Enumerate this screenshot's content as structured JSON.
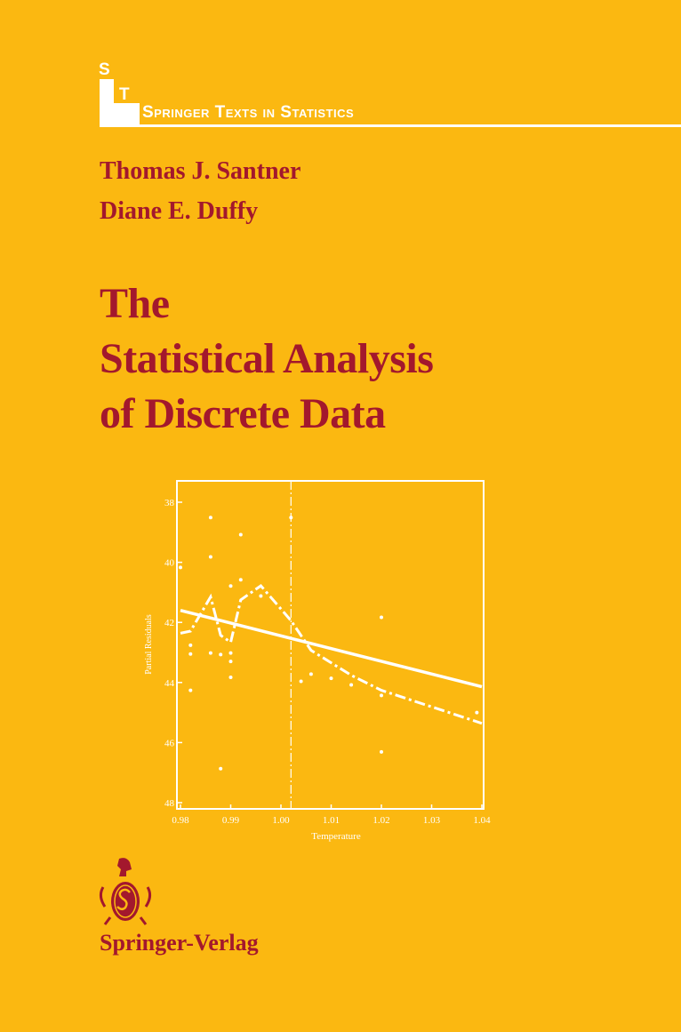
{
  "series": {
    "letter1": "S",
    "letter2": "T",
    "name": "Springer Texts in Statistics"
  },
  "authors": [
    "Thomas J. Santner",
    "Diane E. Duffy"
  ],
  "title_lines": [
    "The",
    "Statistical Analysis",
    "of Discrete Data"
  ],
  "publisher": "Springer-Verlag",
  "colors": {
    "background": "#FBB811",
    "title": "#A3182D",
    "plot": "#FFFFFF"
  },
  "chart_data": {
    "type": "scatter",
    "xlabel": "Temperature",
    "ylabel": "Partial Residuals",
    "xlim": [
      0.98,
      1.04
    ],
    "ylim": [
      48,
      38
    ],
    "y_axis_inverted": true,
    "xticks": [
      "0.98",
      "0.99",
      "1.00",
      "1.01",
      "1.02",
      "1.03",
      "1.04"
    ],
    "yticks": [
      "38",
      "40",
      "42",
      "44",
      "46",
      "48"
    ],
    "grid": false,
    "points": [
      [
        0.98,
        40.17
      ],
      [
        0.986,
        38.51
      ],
      [
        0.986,
        39.82
      ],
      [
        0.992,
        39.08
      ],
      [
        0.992,
        40.58
      ],
      [
        0.99,
        40.79
      ],
      [
        0.996,
        41.12
      ],
      [
        1.002,
        38.51
      ],
      [
        1.02,
        41.83
      ],
      [
        0.982,
        42.76
      ],
      [
        0.982,
        43.05
      ],
      [
        0.982,
        44.26
      ],
      [
        0.986,
        43.02
      ],
      [
        0.988,
        43.07
      ],
      [
        0.99,
        43.02
      ],
      [
        0.99,
        43.3
      ],
      [
        0.99,
        43.83
      ],
      [
        0.988,
        46.87
      ],
      [
        1.004,
        43.96
      ],
      [
        1.006,
        43.72
      ],
      [
        1.01,
        43.86
      ],
      [
        1.014,
        44.08
      ],
      [
        1.02,
        44.43
      ],
      [
        1.02,
        46.31
      ],
      [
        1.039,
        45.0
      ]
    ],
    "linear_fit": [
      [
        0.98,
        41.6
      ],
      [
        1.04,
        44.14
      ]
    ],
    "smooth_curve": [
      [
        0.98,
        42.36
      ],
      [
        0.982,
        42.29
      ],
      [
        0.986,
        41.15
      ],
      [
        0.988,
        42.43
      ],
      [
        0.99,
        42.66
      ],
      [
        0.992,
        41.25
      ],
      [
        0.996,
        40.78
      ],
      [
        1.002,
        41.94
      ],
      [
        1.006,
        42.93
      ],
      [
        1.014,
        43.76
      ],
      [
        1.02,
        44.26
      ],
      [
        1.04,
        45.36
      ]
    ],
    "vertical_reference_x": 1.002
  }
}
